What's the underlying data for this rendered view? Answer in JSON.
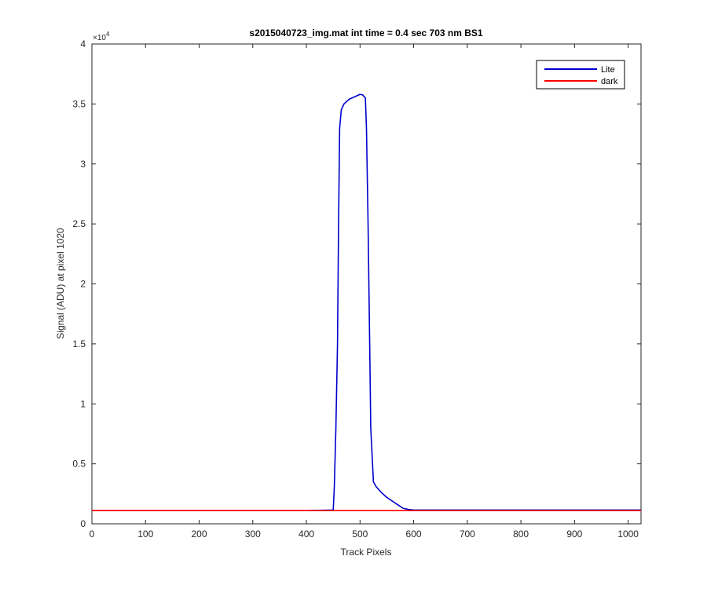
{
  "chart_data": {
    "type": "line",
    "title": "s2015040723_img.mat int time = 0.4 sec  703 nm BS1",
    "xlabel": "Track Pixels",
    "ylabel": "Signal (ADU) at pixel 1020",
    "xlim": [
      0,
      1024
    ],
    "ylim": [
      0,
      40000
    ],
    "x_ticks": [
      0,
      100,
      200,
      300,
      400,
      500,
      600,
      700,
      800,
      900,
      1000
    ],
    "x_tick_labels": [
      "0",
      "100",
      "200",
      "300",
      "400",
      "500",
      "600",
      "700",
      "800",
      "900",
      "1000"
    ],
    "y_ticks": [
      0,
      5000,
      10000,
      15000,
      20000,
      25000,
      30000,
      35000,
      40000
    ],
    "y_tick_labels": [
      "0",
      "0.5",
      "1",
      "1.5",
      "2",
      "2.5",
      "3",
      "3.5",
      "4"
    ],
    "y_exponent_label": "×10",
    "y_exponent_power": "4",
    "grid": false,
    "legend_placement": "top-right",
    "series": [
      {
        "name": "Lite",
        "color": "#0000cc",
        "x": [
          0,
          100,
          200,
          300,
          400,
          450,
          452,
          455,
          458,
          460,
          462,
          465,
          470,
          480,
          490,
          500,
          505,
          510,
          512,
          515,
          518,
          520,
          525,
          530,
          540,
          550,
          560,
          570,
          580,
          590,
          600,
          700,
          800,
          900,
          1024
        ],
        "y": [
          1100,
          1100,
          1100,
          1100,
          1100,
          1150,
          3000,
          8000,
          15000,
          25000,
          33000,
          34500,
          35000,
          35400,
          35600,
          35800,
          35750,
          35500,
          33000,
          25000,
          15000,
          8000,
          3500,
          3100,
          2600,
          2200,
          1900,
          1600,
          1300,
          1200,
          1150,
          1150,
          1150,
          1150,
          1150
        ]
      },
      {
        "name": "dark",
        "color": "#ff0000",
        "x": [
          0,
          1024
        ],
        "y": [
          1100,
          1100
        ]
      }
    ]
  }
}
